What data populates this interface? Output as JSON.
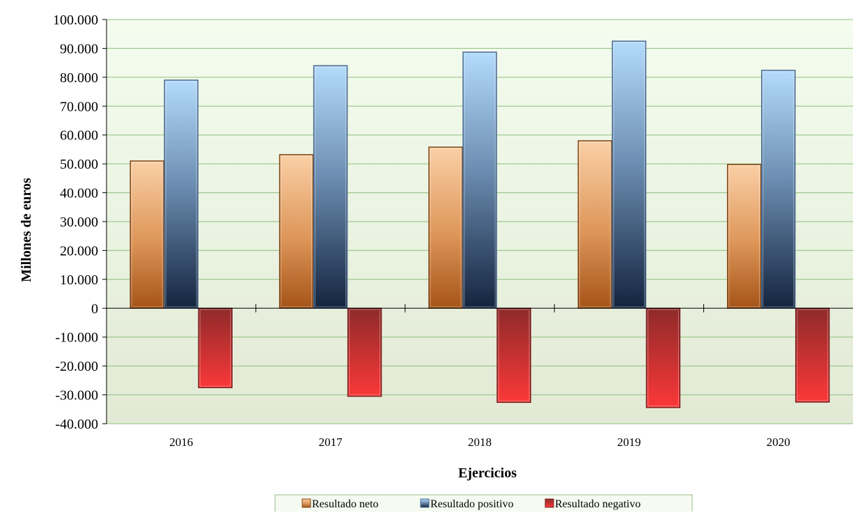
{
  "chart_data": {
    "type": "bar",
    "categories": [
      "2016",
      "2017",
      "2018",
      "2019",
      "2020"
    ],
    "series": [
      {
        "name": "Resultado neto",
        "values": [
          51000,
          53200,
          55800,
          58000,
          49800
        ]
      },
      {
        "name": "Resultado positivo",
        "values": [
          79000,
          84000,
          88700,
          92500,
          82400
        ]
      },
      {
        "name": "Resultado negativo",
        "values": [
          -27500,
          -30500,
          -32600,
          -34400,
          -32500
        ]
      }
    ],
    "xlabel": "Ejercicios",
    "ylabel": "Millones de euros",
    "ylim": [
      -40000,
      100000
    ],
    "yticks": [
      -40000,
      -30000,
      -20000,
      -10000,
      0,
      10000,
      20000,
      30000,
      40000,
      50000,
      60000,
      70000,
      80000,
      90000,
      100000
    ],
    "ytick_labels": [
      "-40.000",
      "-30.000",
      "-20.000",
      "-10.000",
      "0",
      "10.000",
      "20.000",
      "30.000",
      "40.000",
      "50.000",
      "60.000",
      "70.000",
      "80.000",
      "90.000",
      "100.000"
    ],
    "grid": true,
    "legend_position": "bottom",
    "colors": {
      "plot_background_top": "#f3fbee",
      "plot_background_bottom": "#e3ecd6",
      "gridline": "#8cc07a",
      "series": [
        "#c8783a",
        "#7fa7d4",
        "#d63a3a"
      ]
    }
  }
}
